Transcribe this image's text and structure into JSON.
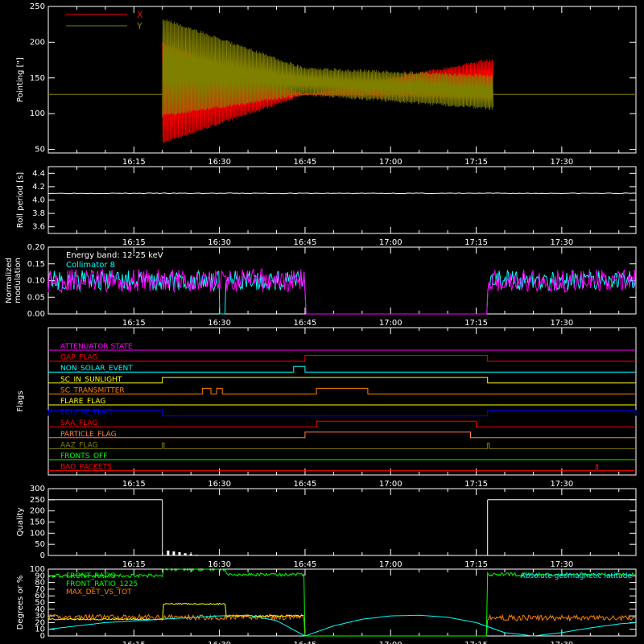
{
  "time_ticks": [
    "16:15",
    "16:30",
    "16:45",
    "17:00",
    "17:15",
    "17:30"
  ],
  "time_ticks_minutes": [
    15,
    30,
    45,
    60,
    75,
    90
  ],
  "time_range_minutes": [
    0,
    103
  ],
  "colors": {
    "x": "#ff0000",
    "y": "#808000",
    "white": "#ffffff",
    "cyan": "#00ffff",
    "magenta": "#ff00ff",
    "green": "#00ff00",
    "orange": "#ff8000",
    "yellow": "#ffff00",
    "blue": "#0000ff"
  },
  "chart_data": [
    {
      "id": "pointing",
      "type": "line",
      "ylabel": "Pointing [\"]",
      "ylim": [
        45,
        250
      ],
      "yticks": [
        50,
        100,
        150,
        200,
        250
      ],
      "legend": [
        "X",
        "Y"
      ],
      "legend_position": "top-left",
      "baseline_value": 127,
      "active_range": [
        20,
        78
      ],
      "x_envelope": {
        "x": [
          20,
          45,
          78
        ],
        "lo": [
          57,
          125,
          120
        ],
        "hi": [
          200,
          130,
          178
        ]
      },
      "y_envelope": {
        "x": [
          20,
          45,
          78
        ],
        "lo": [
          95,
          125,
          105
        ],
        "hi": [
          235,
          165,
          155
        ]
      }
    },
    {
      "id": "roll-period",
      "type": "line",
      "ylabel": "Roll period [s]",
      "ylim": [
        3.5,
        4.5
      ],
      "yticks": [
        3.6,
        3.8,
        4.0,
        4.2,
        4.4
      ],
      "ytick_labels": [
        "3.6",
        "3.8",
        "4.0",
        "4.2",
        "4.4"
      ],
      "value": 4.1
    },
    {
      "id": "modulation",
      "type": "line",
      "ylabel": "Normalized modulation",
      "ylim": [
        0,
        0.2
      ],
      "yticks": [
        0.0,
        0.05,
        0.1,
        0.15,
        0.2
      ],
      "ytick_labels": [
        "0.00",
        "0.05",
        "0.10",
        "0.15",
        "0.20"
      ],
      "annotations": [
        "Energy band: 12-25 keV",
        "Collimator 8"
      ],
      "mean": 0.1,
      "active": [
        [
          0,
          45
        ],
        [
          77,
          103
        ]
      ],
      "cyan_gap": [
        30,
        31
      ]
    },
    {
      "id": "flags",
      "type": "line",
      "ylabel": "Flags",
      "flags": [
        {
          "name": "ATTENUATOR STATE",
          "color": "#ff00ff",
          "segments": []
        },
        {
          "name": "GAP_FLAG",
          "color": "#ff0000",
          "segments": [
            [
              45,
              77
            ]
          ]
        },
        {
          "name": "NON_SOLAR_EVENT",
          "color": "#00ffff",
          "segments": [
            [
              43,
              45
            ]
          ]
        },
        {
          "name": "SC_IN_SUNLIGHT",
          "color": "#ffff00",
          "segments": [
            [
              20,
              77
            ]
          ]
        },
        {
          "name": "SC_TRANSMITTER",
          "color": "#ff8000",
          "segments": [
            [
              27,
              28.5
            ],
            [
              29.5,
              30.5
            ],
            [
              47,
              56
            ]
          ]
        },
        {
          "name": "FLARE_FLAG",
          "color": "#ffff00",
          "segments": []
        },
        {
          "name": "ECLIPSE_FLAG",
          "color": "#0000ff",
          "segments": [
            [
              0,
              20
            ],
            [
              77,
              103
            ]
          ]
        },
        {
          "name": "SAA_FLAG",
          "color": "#ff0000",
          "segments": [
            [
              47,
              75
            ]
          ]
        },
        {
          "name": "PARTICLE_FLAG",
          "color": "#ff8040",
          "segments": [
            [
              45,
              74
            ]
          ]
        },
        {
          "name": "AAZ_FLAG",
          "color": "#808000",
          "segments": [
            [
              20,
              20.3
            ],
            [
              77,
              77.3
            ]
          ]
        },
        {
          "name": "FRONTS_OFF",
          "color": "#00ff00",
          "segments": []
        },
        {
          "name": "BAD_PACKETS",
          "color": "#ff0000",
          "segments": [
            [
              96,
              96.3
            ]
          ]
        }
      ]
    },
    {
      "id": "quality",
      "type": "line",
      "ylabel": "Quality",
      "ylim": [
        0,
        300
      ],
      "yticks": [
        0,
        50,
        100,
        150,
        200,
        250,
        300
      ],
      "ytick_labels": [
        "0",
        "50",
        "100",
        "150",
        "200",
        "250",
        "300"
      ],
      "segments": [
        {
          "x": [
            0,
            20
          ],
          "y": [
            250,
            250
          ]
        },
        {
          "x": [
            20,
            20
          ],
          "y": [
            250,
            0
          ]
        },
        {
          "x": [
            77,
            77
          ],
          "y": [
            0,
            250
          ]
        },
        {
          "x": [
            77,
            103
          ],
          "y": [
            250,
            250
          ]
        }
      ],
      "blips": {
        "x": [
          21,
          22,
          23,
          24,
          25,
          26
        ],
        "y": [
          22,
          18,
          15,
          10,
          6,
          3
        ]
      }
    },
    {
      "id": "ratios",
      "type": "line",
      "ylabel": "Degrees or %",
      "ylim": [
        0,
        100
      ],
      "yticks": [
        0,
        10,
        20,
        30,
        40,
        50,
        60,
        70,
        80,
        90,
        100
      ],
      "ytick_labels": [
        "0",
        "10",
        "20",
        "30",
        "40",
        "50",
        "60",
        "70",
        "80",
        "90",
        "100"
      ],
      "legend": [
        "FRONT_RATIO",
        "FRONT_RATIO_1225",
        "MAX_DET_VS_TOT"
      ],
      "latitude_label": "Absolute geomagnetic latitude",
      "front_ratio": {
        "x": [
          0,
          20,
          20,
          31,
          31,
          45,
          45,
          77,
          77,
          103
        ],
        "y": [
          90,
          90,
          100,
          100,
          92,
          92,
          0,
          0,
          92,
          92
        ]
      },
      "front_ratio_1225": {
        "x": [
          0,
          20,
          20,
          31,
          31,
          45
        ],
        "y": [
          25,
          25,
          48,
          48,
          30,
          30
        ]
      },
      "max_det_vs_tot": {
        "x": [
          0,
          45,
          45,
          77,
          77,
          103
        ],
        "y": [
          28,
          28,
          0,
          0,
          27,
          27
        ]
      },
      "latitude": {
        "x": [
          0,
          10,
          20,
          30,
          35,
          40,
          45,
          50,
          55,
          60,
          65,
          70,
          75,
          80,
          85,
          90,
          95,
          100,
          103
        ],
        "y": [
          10,
          20,
          25,
          30,
          31,
          23,
          0,
          15,
          25,
          30,
          31,
          28,
          20,
          5,
          0,
          5,
          12,
          18,
          20
        ]
      }
    }
  ]
}
